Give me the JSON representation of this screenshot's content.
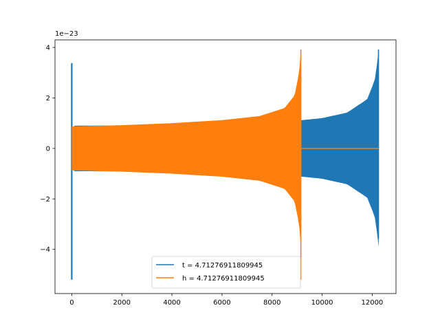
{
  "chart_data": {
    "type": "line",
    "title": "",
    "xlabel": "",
    "ylabel": "",
    "offset_text": "1e−23",
    "xlim": [
      -670,
      12950
    ],
    "ylim": [
      -5.75,
      4.3
    ],
    "x_ticks": [
      0,
      2000,
      4000,
      6000,
      8000,
      10000,
      12000
    ],
    "x_tick_labels": [
      "0",
      "2000",
      "4000",
      "6000",
      "8000",
      "10000",
      "12000"
    ],
    "y_ticks": [
      -4,
      -2,
      0,
      2,
      4
    ],
    "y_tick_labels": [
      "−4",
      "−2",
      "0",
      "2",
      "4"
    ],
    "grid": false,
    "legend_position": "lower center",
    "series": [
      {
        "name": "t = 4.71276911809945",
        "color": "#1f77b4",
        "start_x": 0,
        "end_x": 12270,
        "initial_spike_amplitude": {
          "max": 3.38,
          "min": -5.2
        },
        "envelope": [
          {
            "x": 100,
            "amp": 0.9
          },
          {
            "x": 2000,
            "amp": 0.91
          },
          {
            "x": 4000,
            "amp": 0.94
          },
          {
            "x": 6000,
            "amp": 1.0
          },
          {
            "x": 8000,
            "amp": 1.06
          },
          {
            "x": 9200,
            "amp": 1.12
          },
          {
            "x": 10000,
            "amp": 1.2
          },
          {
            "x": 11000,
            "amp": 1.42
          },
          {
            "x": 11800,
            "amp": 1.95
          },
          {
            "x": 12100,
            "amp": 2.7
          },
          {
            "x": 12230,
            "amp": 3.6
          },
          {
            "x": 12260,
            "amp": 3.9
          }
        ]
      },
      {
        "name": "h = 4.71276911809945",
        "color": "#ff7f0e",
        "start_x": 0,
        "end_x": 12270,
        "signal_end_x": 9170,
        "after_signal_value": 0,
        "envelope": [
          {
            "x": 0,
            "amp": 0.87
          },
          {
            "x": 2000,
            "amp": 0.92
          },
          {
            "x": 4000,
            "amp": 1.0
          },
          {
            "x": 6000,
            "amp": 1.12
          },
          {
            "x": 7500,
            "amp": 1.28
          },
          {
            "x": 8500,
            "amp": 1.6
          },
          {
            "x": 8900,
            "amp": 2.1
          },
          {
            "x": 9080,
            "amp": 3.0
          },
          {
            "x": 9150,
            "amp": 3.9
          }
        ],
        "end_spike_min": -5.2
      }
    ]
  }
}
